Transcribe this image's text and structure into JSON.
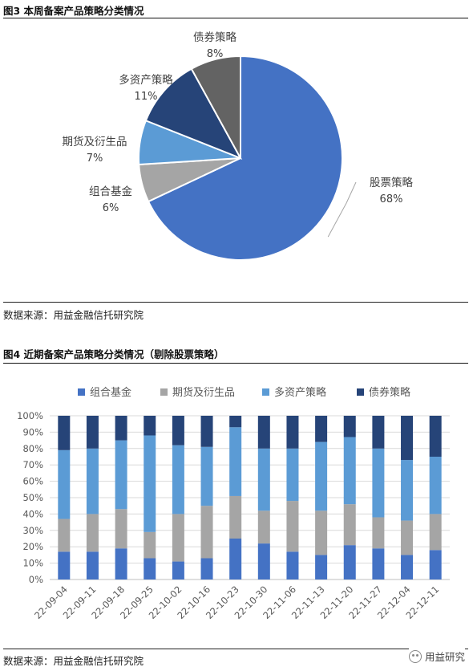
{
  "figure3": {
    "title": "图3  本周备案产品策略分类情况",
    "source": "数据来源：用益金融信托研究院"
  },
  "figure4": {
    "title": "图4  近期备案产品策略分类情况（剔除股票策略）",
    "source": "数据来源：用益金融信托研究院"
  },
  "watermark": {
    "text": "用益研究",
    "icon": "wechat-icon"
  },
  "chart_data": [
    {
      "type": "pie",
      "title": "",
      "labels": [
        "股票策略",
        "组合基金",
        "期货及衍生品",
        "多资产策略",
        "债券策略"
      ],
      "values": [
        68,
        6,
        7,
        11,
        8
      ],
      "value_labels": [
        "68%",
        "6%",
        "7%",
        "11%",
        "8%"
      ],
      "colors": [
        "#4472C4",
        "#A5A5A5",
        "#5B9BD5",
        "#264478",
        "#636363"
      ],
      "legend": "none"
    },
    {
      "type": "bar",
      "stacked": true,
      "title": "",
      "xlabel": "",
      "ylabel": "",
      "ylim": [
        0,
        100
      ],
      "yticks": [
        "0%",
        "10%",
        "20%",
        "30%",
        "40%",
        "50%",
        "60%",
        "70%",
        "80%",
        "90%",
        "100%"
      ],
      "categories": [
        "22-09-04",
        "22-09-11",
        "22-09-18",
        "22-09-25",
        "22-10-02",
        "22-10-16",
        "22-10-23",
        "22-10-30",
        "22-11-06",
        "22-11-13",
        "22-11-20",
        "22-11-27",
        "22-12-04",
        "22-12-11"
      ],
      "series": [
        {
          "name": "组合基金",
          "color": "#4472C4",
          "values": [
            17,
            17,
            19,
            13,
            11,
            13,
            25,
            22,
            17,
            15,
            21,
            19,
            15,
            18
          ]
        },
        {
          "name": "期货及衍生品",
          "color": "#A5A5A5",
          "values": [
            20,
            23,
            24,
            16,
            29,
            32,
            26,
            20,
            31,
            27,
            25,
            19,
            21,
            22
          ]
        },
        {
          "name": "多资产策略",
          "color": "#5B9BD5",
          "values": [
            42,
            40,
            42,
            59,
            42,
            36,
            42,
            38,
            32,
            42,
            41,
            42,
            37,
            35
          ]
        },
        {
          "name": "债券策略",
          "color": "#264478",
          "values": [
            21,
            20,
            15,
            12,
            18,
            19,
            7,
            20,
            20,
            16,
            13,
            20,
            27,
            25
          ]
        }
      ],
      "legend": "top",
      "grid": true
    }
  ]
}
